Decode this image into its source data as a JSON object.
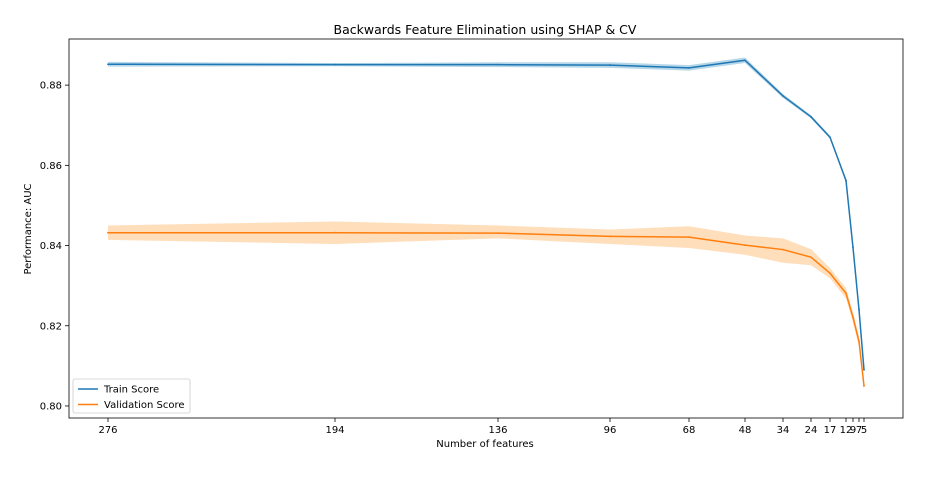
{
  "chart_data": {
    "type": "line",
    "title": "Backwards Feature Elimination using SHAP & CV",
    "xlabel": "Number of features",
    "ylabel": "Performance: AUC",
    "x_inverted": true,
    "xticks": [
      276,
      194,
      136,
      96,
      68,
      48,
      34,
      24,
      17,
      12,
      9,
      7,
      5
    ],
    "xtick_labels": [
      "276",
      "194",
      "136",
      "96",
      "68",
      "48",
      "34",
      "24",
      "17",
      "12",
      "9",
      "7",
      "5"
    ],
    "yticks": [
      0.8,
      0.82,
      0.84,
      0.86,
      0.88
    ],
    "ytick_labels": [
      "0.80",
      "0.82",
      "0.84",
      "0.86",
      "0.88"
    ],
    "ylim": [
      0.797,
      0.8915
    ],
    "grid": false,
    "legend_position": "lower-left",
    "x": [
      276,
      194,
      136,
      96,
      68,
      48,
      34,
      24,
      17,
      12,
      9,
      7,
      5
    ],
    "series": [
      {
        "name": "Train Score",
        "color": "#1f77b4",
        "band_color": "#9ecae1",
        "values": [
          0.8852,
          0.8851,
          0.8851,
          0.885,
          0.8843,
          0.8862,
          0.8773,
          0.8721,
          0.867,
          0.8562,
          0.8395,
          0.824,
          0.809
        ],
        "lower": [
          0.8846,
          0.8847,
          0.8845,
          0.8843,
          0.8836,
          0.8855,
          0.8768,
          0.8717,
          0.8666,
          0.8558,
          0.8391,
          0.8236,
          0.8086
        ],
        "upper": [
          0.8858,
          0.8855,
          0.8857,
          0.8857,
          0.885,
          0.8869,
          0.8778,
          0.8725,
          0.8674,
          0.8566,
          0.8399,
          0.8244,
          0.8094
        ]
      },
      {
        "name": "Validation Score",
        "color": "#ff7f0e",
        "band_color": "#ffd3a4",
        "values": [
          0.8432,
          0.8432,
          0.8431,
          0.8423,
          0.8421,
          0.8401,
          0.839,
          0.8371,
          0.8331,
          0.8281,
          0.8221,
          0.8161,
          0.805
        ],
        "lower": [
          0.8414,
          0.8404,
          0.8418,
          0.8404,
          0.8394,
          0.8377,
          0.8357,
          0.8351,
          0.8318,
          0.8268,
          0.8208,
          0.8148,
          0.8038
        ],
        "upper": [
          0.845,
          0.846,
          0.845,
          0.844,
          0.8448,
          0.8425,
          0.8418,
          0.8391,
          0.8344,
          0.8294,
          0.8234,
          0.8174,
          0.8062
        ]
      }
    ]
  }
}
